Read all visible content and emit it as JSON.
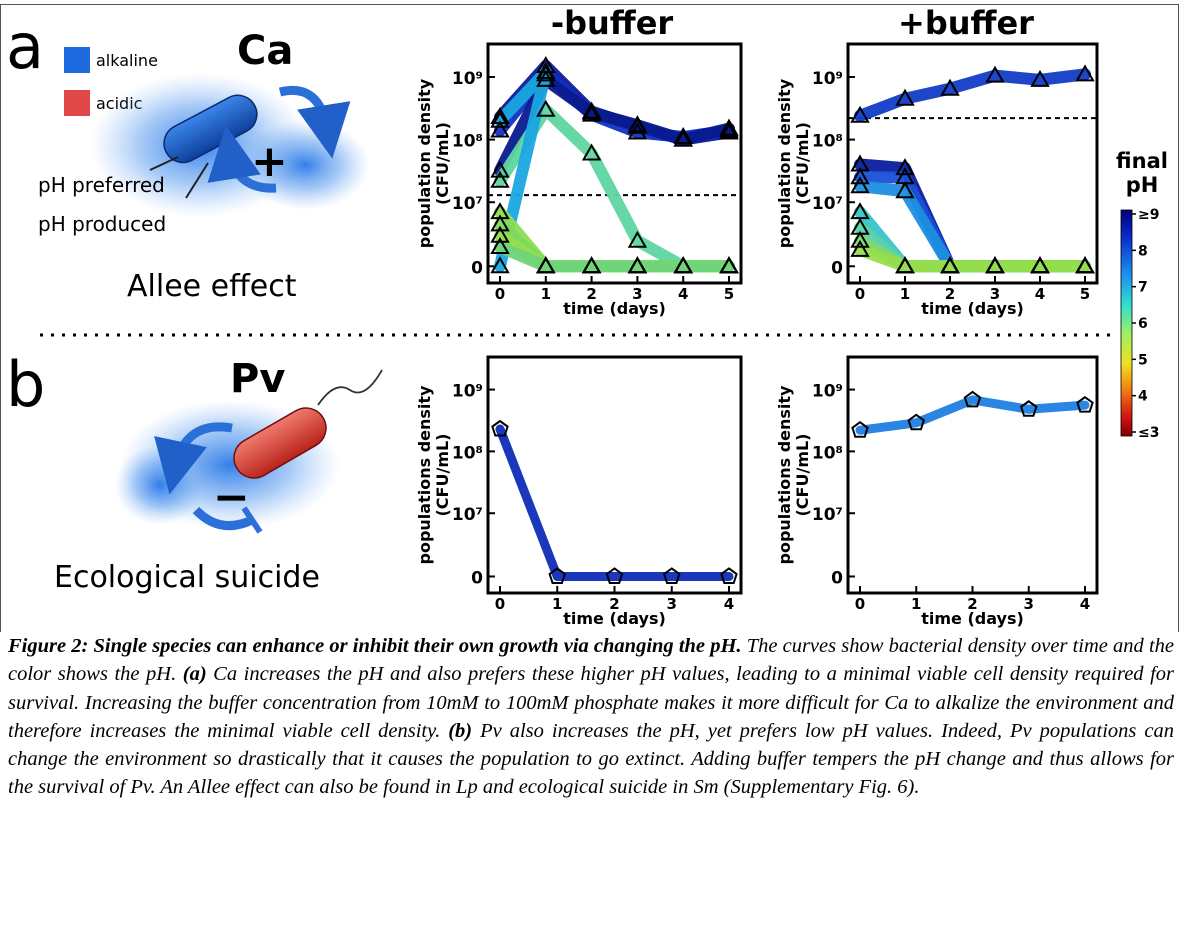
{
  "panel_a": {
    "letter": "a",
    "species": "Ca",
    "legend_alkaline": "alkaline",
    "legend_acidic": "acidic",
    "label_preferred": "pH preferred",
    "label_produced": "pH produced",
    "sign": "+",
    "effect": "Allee effect"
  },
  "panel_b": {
    "letter": "b",
    "species": "Pv",
    "sign": "−",
    "effect": "Ecological suicide"
  },
  "col_titles": [
    "-buffer",
    "+buffer"
  ],
  "colorbar": {
    "title_line1": "final",
    "title_line2": "pH",
    "ticks": [
      "≥9",
      "8",
      "7",
      "6",
      "5",
      "4",
      "≤3"
    ]
  },
  "chart_data": [
    {
      "type": "line",
      "panel": "a",
      "title": "-buffer",
      "xlabel": "time (days)",
      "ylabel": "population density (CFU/mL)",
      "x_ticks": [
        "0",
        "1",
        "2",
        "3",
        "4",
        "5"
      ],
      "y_ticks": [
        "0",
        "10⁷",
        "10⁸",
        "10⁹"
      ],
      "threshold": 13000000.0,
      "series": [
        {
          "x": [
            0,
            1,
            2,
            3,
            4,
            5
          ],
          "y": [
            230000000.0,
            1500000000.0,
            280000000.0,
            160000000.0,
            100000000.0,
            130000000.0
          ],
          "color": "#0b1e9c"
        },
        {
          "x": [
            0,
            1,
            2,
            3,
            4,
            5
          ],
          "y": [
            140000000.0,
            1100000000.0,
            250000000.0,
            130000000.0,
            110000000.0,
            140000000.0
          ],
          "color": "#1030c4"
        },
        {
          "x": [
            0,
            1,
            2,
            3,
            4,
            5
          ],
          "y": [
            32000000.0,
            900000000.0,
            270000000.0,
            170000000.0,
            100000000.0,
            150000000.0
          ],
          "color": "#0a1a8e"
        },
        {
          "x": [
            0,
            1,
            2,
            3,
            4,
            5
          ],
          "y": [
            22000000.0,
            300000000.0,
            60000000.0,
            2500000.0,
            0,
            0
          ],
          "color": "#5fd6a0"
        },
        {
          "x": [
            0,
            1,
            0
          ],
          "y": [
            200000000.0,
            1200000000.0,
            0
          ],
          "color": "#1aa6e0"
        },
        {
          "x": [
            0,
            1,
            2,
            3,
            4,
            5
          ],
          "y": [
            7000000.0,
            0,
            0,
            0,
            0,
            0
          ],
          "color": "#8cdc54"
        },
        {
          "x": [
            0,
            1,
            2,
            3,
            4,
            5
          ],
          "y": [
            4500000.0,
            0,
            0,
            0,
            0,
            0
          ],
          "color": "#7ed860"
        },
        {
          "x": [
            0,
            1,
            2,
            3,
            4,
            5
          ],
          "y": [
            3000000.0,
            0,
            0,
            0,
            0,
            0
          ],
          "color": "#93de4e"
        },
        {
          "x": [
            0,
            1,
            2,
            3,
            4,
            5
          ],
          "y": [
            2000000.0,
            0,
            0,
            0,
            0,
            0
          ],
          "color": "#6fd47a"
        }
      ]
    },
    {
      "type": "line",
      "panel": "a",
      "title": "+buffer",
      "xlabel": "time (days)",
      "ylabel": "population density (CFU/mL)",
      "x_ticks": [
        "0",
        "1",
        "2",
        "3",
        "4",
        "5"
      ],
      "y_ticks": [
        "0",
        "10⁷",
        "10⁸",
        "10⁹"
      ],
      "threshold": 220000000.0,
      "series": [
        {
          "x": [
            0,
            1,
            2,
            3,
            4,
            5
          ],
          "y": [
            240000000.0,
            450000000.0,
            650000000.0,
            1050000000.0,
            900000000.0,
            1100000000.0
          ],
          "color": "#123cc8"
        },
        {
          "x": [
            0,
            1,
            2,
            3,
            4,
            5
          ],
          "y": [
            40000000.0,
            35000000.0,
            0,
            0,
            0,
            0
          ],
          "color": "#0b1e9c"
        },
        {
          "x": [
            0,
            1,
            2,
            3,
            4,
            5
          ],
          "y": [
            25000000.0,
            25000000.0,
            0,
            0,
            0,
            0
          ],
          "color": "#1a4fd8"
        },
        {
          "x": [
            0,
            1,
            2,
            3,
            4,
            5
          ],
          "y": [
            18000000.0,
            15000000.0,
            0,
            0,
            0,
            0
          ],
          "color": "#1c8ee0"
        },
        {
          "x": [
            0,
            1,
            2,
            3,
            4,
            5
          ],
          "y": [
            7000000.0,
            0,
            0,
            0,
            0,
            0
          ],
          "color": "#38c4c8"
        },
        {
          "x": [
            0,
            1,
            2,
            3,
            4,
            5
          ],
          "y": [
            4000000.0,
            0,
            0,
            0,
            0,
            0
          ],
          "color": "#5bd2a6"
        },
        {
          "x": [
            0,
            1,
            2,
            3,
            4,
            5
          ],
          "y": [
            2500000.0,
            0,
            0,
            0,
            0,
            0
          ],
          "color": "#7cd870"
        },
        {
          "x": [
            0,
            1,
            2,
            3,
            4,
            5
          ],
          "y": [
            1800000.0,
            0,
            0,
            0,
            0,
            0
          ],
          "color": "#96de4c"
        }
      ]
    },
    {
      "type": "line",
      "panel": "b",
      "title": "",
      "xlabel": "time (days)",
      "ylabel": "populations density (CFU/mL)",
      "x_ticks": [
        "0",
        "1",
        "2",
        "3",
        "4"
      ],
      "y_ticks": [
        "0",
        "10⁷",
        "10⁸",
        "10⁹"
      ],
      "series": [
        {
          "x": [
            0,
            1,
            2,
            3,
            4
          ],
          "y": [
            230000000.0,
            0,
            0,
            0,
            0
          ],
          "color": "#0f2cb8"
        }
      ]
    },
    {
      "type": "line",
      "panel": "b",
      "title": "",
      "xlabel": "time (days)",
      "ylabel": "populations density (CFU/mL)",
      "x_ticks": [
        "0",
        "1",
        "2",
        "3",
        "4"
      ],
      "y_ticks": [
        "0",
        "10⁷",
        "10⁸",
        "10⁹"
      ],
      "series": [
        {
          "x": [
            0,
            1,
            2,
            3,
            4
          ],
          "y": [
            220000000.0,
            290000000.0,
            680000000.0,
            480000000.0,
            560000000.0
          ],
          "color": "#1f7fe0"
        }
      ]
    }
  ],
  "caption": {
    "lead": "Figure 2: Single species can enhance or inhibit their own growth via changing the pH.",
    "part1": " The curves show bacterial density over time and the color shows the pH. ",
    "a_label": "(a)",
    "part2": " Ca increases the pH and also prefers these higher pH values, leading to a minimal viable cell density required for survival. Increasing the buffer concentration from 10mM to 100mM phosphate makes it more difficult for Ca to alkalize the environment and therefore increases the minimal viable cell density. ",
    "b_label": "(b)",
    "part3": " Pv also increases the pH, yet prefers low pH values. Indeed, Pv populations can change the environment so drastically that it causes the population to go extinct. Adding buffer tempers the pH change and thus allows for the survival of Pv. An Allee effect can also be found in Lp and ecological suicide in Sm (Supplementary Fig. 6)."
  }
}
